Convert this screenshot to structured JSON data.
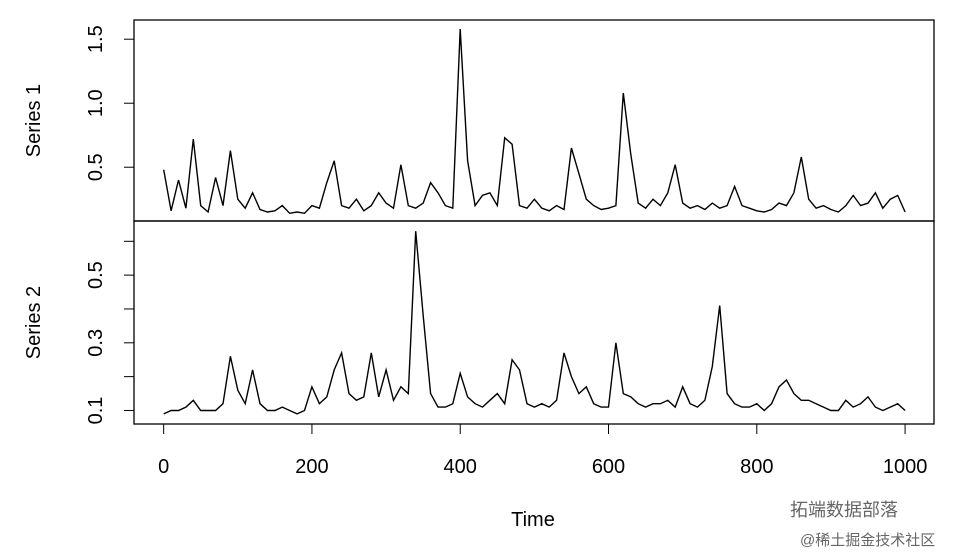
{
  "chart_data": {
    "type": "line",
    "color": "#000000",
    "x": [
      0,
      10,
      20,
      30,
      40,
      50,
      60,
      70,
      80,
      90,
      100,
      110,
      120,
      130,
      140,
      150,
      160,
      170,
      180,
      190,
      200,
      210,
      220,
      230,
      240,
      250,
      260,
      270,
      280,
      290,
      300,
      310,
      320,
      330,
      340,
      350,
      360,
      370,
      380,
      390,
      400,
      410,
      420,
      430,
      440,
      450,
      460,
      470,
      480,
      490,
      500,
      510,
      520,
      530,
      540,
      550,
      560,
      570,
      580,
      590,
      600,
      610,
      620,
      630,
      640,
      650,
      660,
      670,
      680,
      690,
      700,
      710,
      720,
      730,
      740,
      750,
      760,
      770,
      780,
      790,
      800,
      810,
      820,
      830,
      840,
      850,
      860,
      870,
      880,
      890,
      900,
      910,
      920,
      930,
      940,
      950,
      960,
      970,
      980,
      990,
      1000
    ],
    "xlim": [
      -40,
      1039
    ],
    "xticks": [
      0,
      200,
      400,
      600,
      800,
      1000
    ],
    "x_label": "Time",
    "panels": [
      {
        "y_label": "Series 1",
        "ylim": [
          0.08,
          1.65
        ],
        "yticks": [
          0.5,
          {
            "value": 1,
            "label": "1.0"
          },
          1.5
        ],
        "values": [
          0.48,
          0.16,
          0.4,
          0.18,
          0.72,
          0.2,
          0.15,
          0.42,
          0.2,
          0.63,
          0.25,
          0.18,
          0.3,
          0.17,
          0.15,
          0.16,
          0.2,
          0.14,
          0.15,
          0.14,
          0.2,
          0.18,
          0.38,
          0.55,
          0.2,
          0.18,
          0.25,
          0.16,
          0.2,
          0.3,
          0.22,
          0.18,
          0.52,
          0.2,
          0.18,
          0.22,
          0.38,
          0.3,
          0.2,
          0.18,
          1.58,
          0.55,
          0.2,
          0.28,
          0.3,
          0.2,
          0.73,
          0.68,
          0.2,
          0.18,
          0.25,
          0.18,
          0.16,
          0.2,
          0.17,
          0.65,
          0.45,
          0.25,
          0.2,
          0.17,
          0.18,
          0.2,
          1.08,
          0.6,
          0.22,
          0.18,
          0.25,
          0.2,
          0.3,
          0.52,
          0.22,
          0.18,
          0.2,
          0.17,
          0.22,
          0.18,
          0.2,
          0.35,
          0.2,
          0.18,
          0.16,
          0.15,
          0.17,
          0.22,
          0.2,
          0.3,
          0.58,
          0.25,
          0.18,
          0.2,
          0.17,
          0.15,
          0.2,
          0.28,
          0.2,
          0.22,
          0.3,
          0.18,
          0.25,
          0.28,
          0.15
        ]
      },
      {
        "y_label": "Series 2",
        "ylim": [
          0.06,
          0.66
        ],
        "yticks": [
          0.1,
          0.3,
          0.5
        ],
        "minor_yticks": [
          0.2,
          0.4,
          0.6
        ],
        "values": [
          0.09,
          0.1,
          0.1,
          0.11,
          0.13,
          0.1,
          0.1,
          0.1,
          0.12,
          0.26,
          0.16,
          0.12,
          0.22,
          0.12,
          0.1,
          0.1,
          0.11,
          0.1,
          0.09,
          0.1,
          0.17,
          0.12,
          0.14,
          0.22,
          0.27,
          0.15,
          0.13,
          0.14,
          0.27,
          0.14,
          0.22,
          0.13,
          0.17,
          0.15,
          0.63,
          0.38,
          0.15,
          0.11,
          0.11,
          0.12,
          0.21,
          0.14,
          0.12,
          0.11,
          0.13,
          0.15,
          0.12,
          0.25,
          0.22,
          0.12,
          0.11,
          0.12,
          0.11,
          0.13,
          0.27,
          0.2,
          0.15,
          0.17,
          0.12,
          0.11,
          0.11,
          0.3,
          0.15,
          0.14,
          0.12,
          0.11,
          0.12,
          0.12,
          0.13,
          0.11,
          0.17,
          0.12,
          0.11,
          0.13,
          0.23,
          0.41,
          0.15,
          0.12,
          0.11,
          0.11,
          0.12,
          0.1,
          0.12,
          0.17,
          0.19,
          0.15,
          0.13,
          0.13,
          0.12,
          0.11,
          0.1,
          0.1,
          0.13,
          0.11,
          0.12,
          0.14,
          0.11,
          0.1,
          0.11,
          0.12,
          0.1
        ]
      }
    ]
  },
  "watermark": {
    "line1": "拓端数据部落",
    "line2": "@稀土掘金技术社区"
  }
}
